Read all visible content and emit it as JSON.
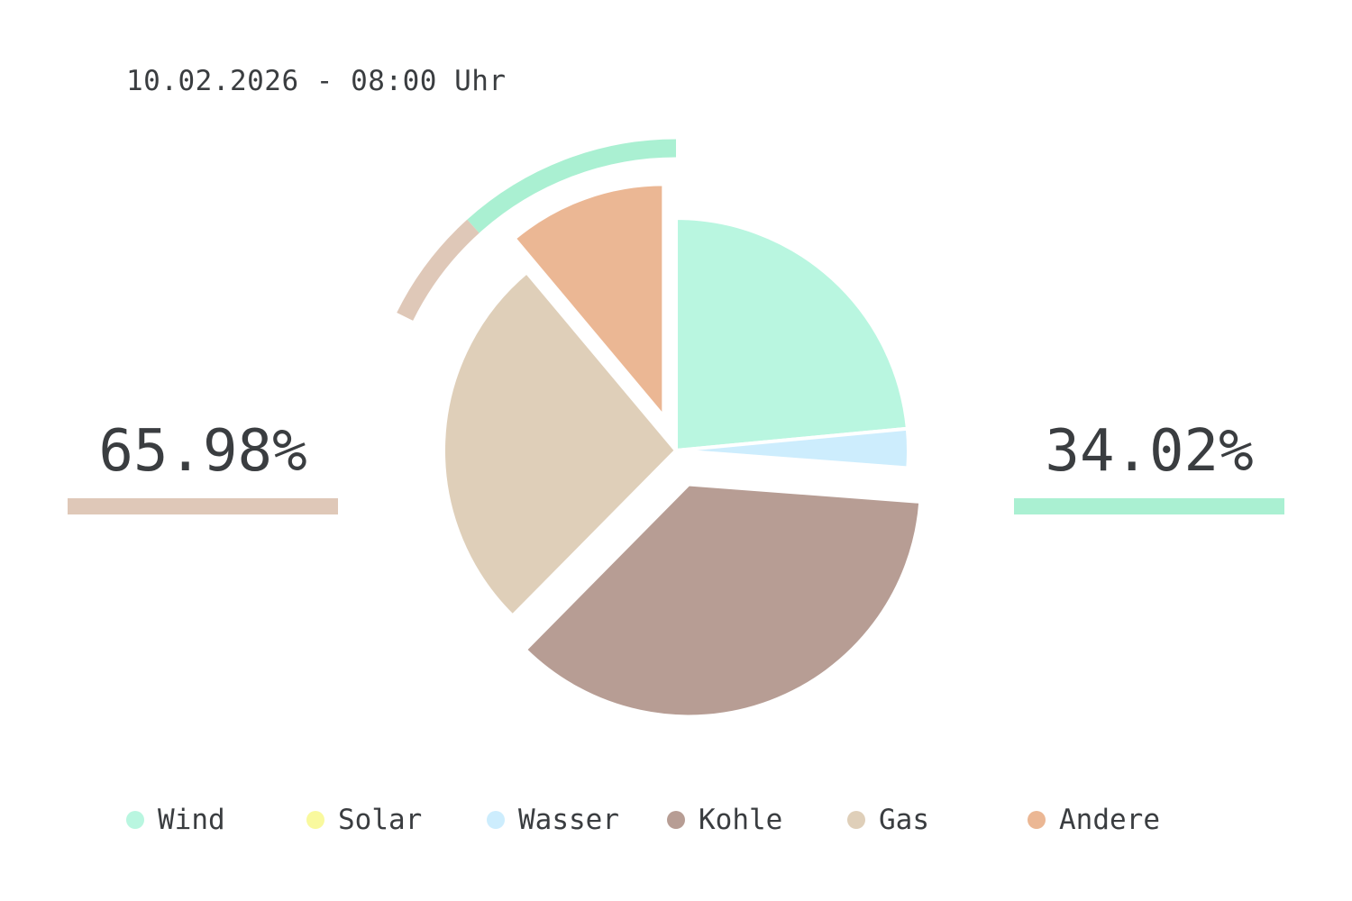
{
  "timestamp": "10.02.2026 - 08:00 Uhr",
  "left_stat": {
    "value": "65.98%",
    "color": "#dfc8b8"
  },
  "right_stat": {
    "value": "34.02%",
    "color": "#aaf0d2"
  },
  "chart_data": {
    "type": "pie",
    "start_angle_deg": 0,
    "direction": "clockwise",
    "slices": [
      {
        "label": "Wind",
        "value": 23.5,
        "color": "#b9f6e0",
        "exploded": false
      },
      {
        "label": "Solar",
        "value": 0.0,
        "color": "#f9f99e",
        "exploded": false
      },
      {
        "label": "Wasser",
        "value": 2.7,
        "color": "#cdedfd",
        "exploded": false
      },
      {
        "label": "Kohle",
        "value": 36.2,
        "color": "#b79d94",
        "exploded": true
      },
      {
        "label": "Gas",
        "value": 26.5,
        "color": "#dfcfb9",
        "exploded": false
      },
      {
        "label": "Andere",
        "value": 11.1,
        "color": "#ebb794",
        "exploded": true
      }
    ],
    "outer_ring": [
      {
        "label": "Gas",
        "share": 6.0,
        "color": "#dfc8b8"
      },
      {
        "label": "Wind",
        "share": 11.7,
        "color": "#aaf0d2"
      }
    ],
    "legend": [
      "Wind",
      "Solar",
      "Wasser",
      "Kohle",
      "Gas",
      "Andere"
    ],
    "legend_position": "bottom"
  }
}
